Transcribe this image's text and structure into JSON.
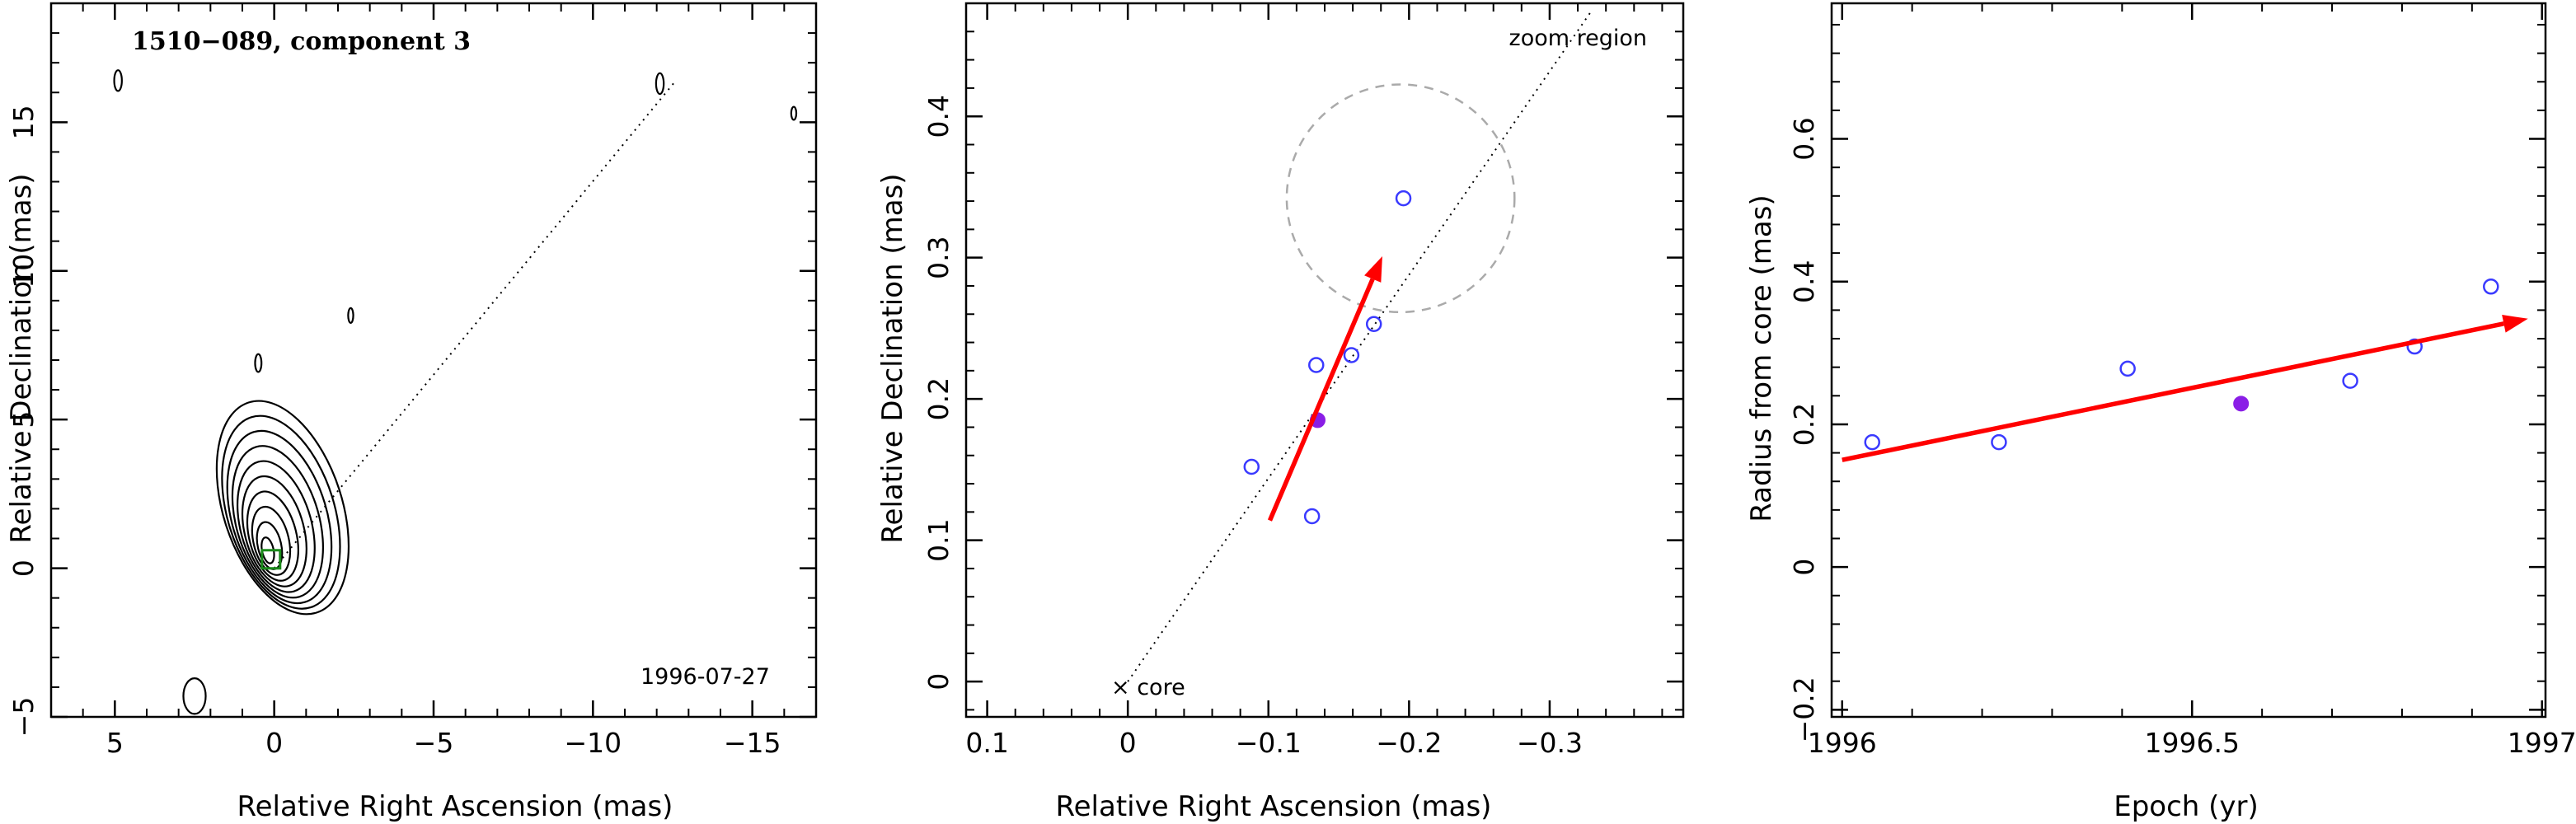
{
  "chart_data": [
    {
      "type": "contour",
      "title": "1510−089, component 3",
      "date_label": "1996-07-27",
      "xlabel": "Relative Right Ascension (mas)",
      "ylabel": "Relative Declination (mas)",
      "xlim": [
        7,
        -17
      ],
      "ylim": [
        -5,
        19
      ],
      "xticks": [
        "5",
        "0",
        "−5",
        "−10",
        "−15"
      ],
      "xtick_values": [
        5,
        0,
        -5,
        -10,
        -15
      ],
      "yticks": [
        "−5",
        "0",
        "5",
        "10",
        "15"
      ],
      "ytick_values": [
        -5,
        0,
        5,
        10,
        15
      ],
      "core_contours": {
        "center": [
          0.2,
          0.6
        ],
        "levels": 10
      },
      "small_contours": [
        {
          "x": 2.5,
          "y": -4.3,
          "rx": 0.35,
          "ry": 0.6
        },
        {
          "x": 0.5,
          "y": 6.9,
          "rx": 0.1,
          "ry": 0.3
        },
        {
          "x": -2.4,
          "y": 8.5,
          "rx": 0.08,
          "ry": 0.25
        },
        {
          "x": 4.9,
          "y": 16.4,
          "rx": 0.12,
          "ry": 0.35
        },
        {
          "x": -12.1,
          "y": 16.3,
          "rx": 0.12,
          "ry": 0.35
        },
        {
          "x": -16.3,
          "y": 15.3,
          "rx": 0.08,
          "ry": 0.22
        }
      ],
      "jet_line": {
        "x1": 0,
        "y1": 0,
        "x2": -12.6,
        "y2": 16.4
      },
      "component_marker": {
        "x": 0.1,
        "y": 0.3
      }
    },
    {
      "type": "scatter",
      "xlabel": "Relative Right Ascension (mas)",
      "ylabel": "Relative Declination (mas)",
      "xlim": [
        0.115,
        -0.395
      ],
      "ylim": [
        -0.025,
        0.48
      ],
      "xticks": [
        "0.1",
        "0",
        "−0.1",
        "−0.2",
        "−0.3"
      ],
      "xtick_values": [
        0.1,
        0,
        -0.1,
        -0.2,
        -0.3
      ],
      "yticks": [
        "0",
        "0.1",
        "0.2",
        "0.3",
        "0.4"
      ],
      "ytick_values": [
        0,
        0.1,
        0.2,
        0.3,
        0.4
      ],
      "zoom_label": "zoom region",
      "core_label": "× core",
      "points_open": [
        {
          "x": -0.088,
          "y": 0.152
        },
        {
          "x": -0.131,
          "y": 0.117
        },
        {
          "x": -0.134,
          "y": 0.224
        },
        {
          "x": -0.159,
          "y": 0.231
        },
        {
          "x": -0.175,
          "y": 0.253
        },
        {
          "x": -0.196,
          "y": 0.342
        }
      ],
      "points_filled": [
        {
          "x": -0.135,
          "y": 0.185
        }
      ],
      "arrow": {
        "x1": -0.101,
        "y1": 0.114,
        "x2": -0.181,
        "y2": 0.301
      },
      "dashed_circle": {
        "x": -0.194,
        "y": 0.342,
        "r": 0.081
      },
      "fit_line": {
        "x1": 0,
        "y1": 0,
        "x2": -0.33,
        "y2": 0.475
      }
    },
    {
      "type": "scatter",
      "xlabel": "Epoch (yr)",
      "ylabel": "Radius from core (mas)",
      "xlim": [
        1995.985,
        1997.005
      ],
      "ylim": [
        -0.21,
        0.79
      ],
      "xticks": [
        "1996",
        "1996.5",
        "1997"
      ],
      "xtick_values": [
        1996,
        1996.5,
        1997
      ],
      "yticks": [
        "−0.2",
        "0",
        "0.2",
        "0.4",
        "0.6"
      ],
      "ytick_values": [
        -0.2,
        0,
        0.2,
        0.4,
        0.6
      ],
      "points_open": [
        {
          "x": 1996.043,
          "y": 0.175
        },
        {
          "x": 1996.224,
          "y": 0.175
        },
        {
          "x": 1996.408,
          "y": 0.278
        },
        {
          "x": 1996.726,
          "y": 0.261
        },
        {
          "x": 1996.818,
          "y": 0.309
        },
        {
          "x": 1996.927,
          "y": 0.393
        }
      ],
      "points_filled": [
        {
          "x": 1996.57,
          "y": 0.229
        }
      ],
      "arrow": {
        "x1": 1996.0,
        "y1": 0.15,
        "x2": 1996.98,
        "y2": 0.348
      }
    }
  ],
  "colors": {
    "open_marker": "#3a3aff",
    "filled_marker": "#8a1ee6",
    "arrow": "#ff0000",
    "component_marker": "#1a8a1a",
    "dashed_circle": "#aaaaaa"
  }
}
